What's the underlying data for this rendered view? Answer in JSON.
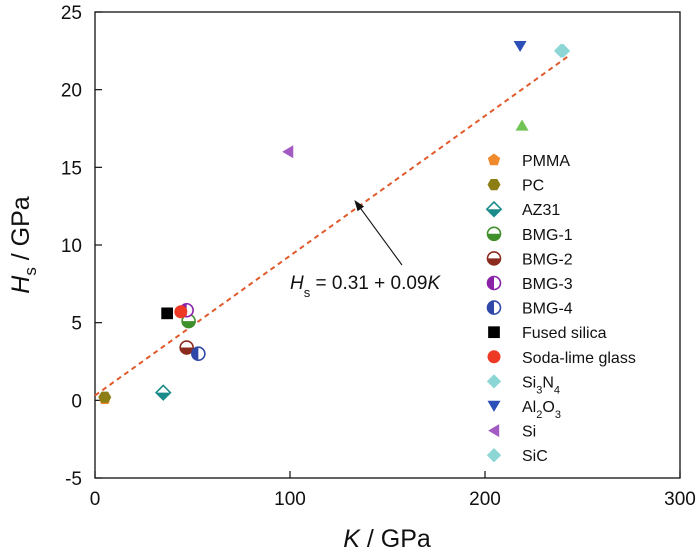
{
  "chart_data": {
    "type": "scatter",
    "xlabel": {
      "main": "K",
      "sub": "",
      "unit": " / GPa"
    },
    "ylabel": {
      "main": "H",
      "sub": "s",
      "unit": " / GPa"
    },
    "xlim": [
      0,
      300
    ],
    "ylim": [
      -5,
      25
    ],
    "x_ticks": [
      0,
      100,
      200,
      300
    ],
    "y_ticks": [
      -5,
      0,
      5,
      10,
      15,
      20,
      25
    ],
    "x_tick_labels": [
      "0",
      "100",
      "200",
      "300"
    ],
    "y_tick_labels": [
      "-5",
      "0",
      "5",
      "10",
      "15",
      "20",
      "25"
    ],
    "grid": false,
    "legend_placement": "right",
    "series": [
      {
        "name": "PMMA",
        "name_parts": [
          {
            "t": "PMMA"
          }
        ],
        "marker": "pentagon",
        "color": "#f08a2c",
        "points": [
          [
            5,
            0.1
          ]
        ]
      },
      {
        "name": "PC",
        "name_parts": [
          {
            "t": "PC"
          }
        ],
        "marker": "hexagon",
        "color": "#8c7d14",
        "points": [
          [
            5,
            0.2
          ]
        ]
      },
      {
        "name": "AZ31",
        "name_parts": [
          {
            "t": "AZ31"
          }
        ],
        "marker": "diamond-half",
        "color": "#1a8a8a",
        "points": [
          [
            35,
            0.5
          ]
        ]
      },
      {
        "name": "BMG-1",
        "name_parts": [
          {
            "t": "BMG-1"
          }
        ],
        "marker": "circle-half-bottom",
        "color": "#3f8f2a",
        "points": [
          [
            48,
            5.1
          ]
        ]
      },
      {
        "name": "BMG-2",
        "name_parts": [
          {
            "t": "BMG-2"
          }
        ],
        "marker": "circle-half-bottom",
        "color": "#8b2a1e",
        "points": [
          [
            47,
            3.4
          ]
        ]
      },
      {
        "name": "BMG-3",
        "name_parts": [
          {
            "t": "BMG-3"
          }
        ],
        "marker": "circle-half-left",
        "color": "#8a22a8",
        "points": [
          [
            47,
            5.8
          ]
        ]
      },
      {
        "name": "BMG-4",
        "name_parts": [
          {
            "t": "BMG-4"
          }
        ],
        "marker": "circle-half-left",
        "color": "#2f48a8",
        "points": [
          [
            53,
            3.0
          ]
        ]
      },
      {
        "name": "Fused silica",
        "name_parts": [
          {
            "t": "Fused silica"
          }
        ],
        "marker": "square",
        "color": "#000000",
        "points": [
          [
            37,
            5.6
          ]
        ]
      },
      {
        "name": "Soda-lime glass",
        "name_parts": [
          {
            "t": "Soda-lime glass"
          }
        ],
        "marker": "circle",
        "color": "#ee3a24",
        "points": [
          [
            44,
            5.7
          ]
        ]
      },
      {
        "name": "Si3N4",
        "name_parts": [
          {
            "t": "Si"
          },
          {
            "t": "3",
            "sub": true
          },
          {
            "t": "N"
          },
          {
            "t": "4",
            "sub": true
          }
        ],
        "marker": "diamond",
        "color": "#8dd6d6",
        "points": [
          [
            240,
            22.5
          ]
        ]
      },
      {
        "name": "Al2O3",
        "name_parts": [
          {
            "t": "Al"
          },
          {
            "t": "2",
            "sub": true
          },
          {
            "t": "O"
          },
          {
            "t": "3",
            "sub": true
          }
        ],
        "marker": "triangle-down",
        "color": "#2d4fb8",
        "points": [
          [
            218,
            22.8
          ]
        ]
      },
      {
        "name": "Si",
        "name_parts": [
          {
            "t": "Si"
          }
        ],
        "marker": "triangle-left",
        "color": "#a35bc4",
        "points": [
          [
            99,
            16.0
          ]
        ]
      },
      {
        "name": "SiC",
        "name_parts": [
          {
            "t": "SiC"
          }
        ],
        "marker": "diamond",
        "color": "#8dd6d6",
        "points": [
          [
            239,
            22.5
          ]
        ]
      },
      {
        "name": "",
        "name_parts": [],
        "marker": "triangle-up",
        "color": "#72c454",
        "points": [
          [
            219,
            17.7
          ]
        ]
      }
    ],
    "fit_line": {
      "intercept": 0.31,
      "slope": 0.09,
      "x_range": [
        0,
        243
      ],
      "color": "#e05a2c",
      "style": "dashed"
    },
    "annotation": {
      "parts": [
        {
          "t": "H",
          "italic": true
        },
        {
          "t": "s",
          "sub": true
        },
        {
          "t": " = 0.31 + 0.09"
        },
        {
          "t": "K",
          "italic": true
        }
      ],
      "arrow_target": [
        133,
        12.9
      ]
    }
  }
}
